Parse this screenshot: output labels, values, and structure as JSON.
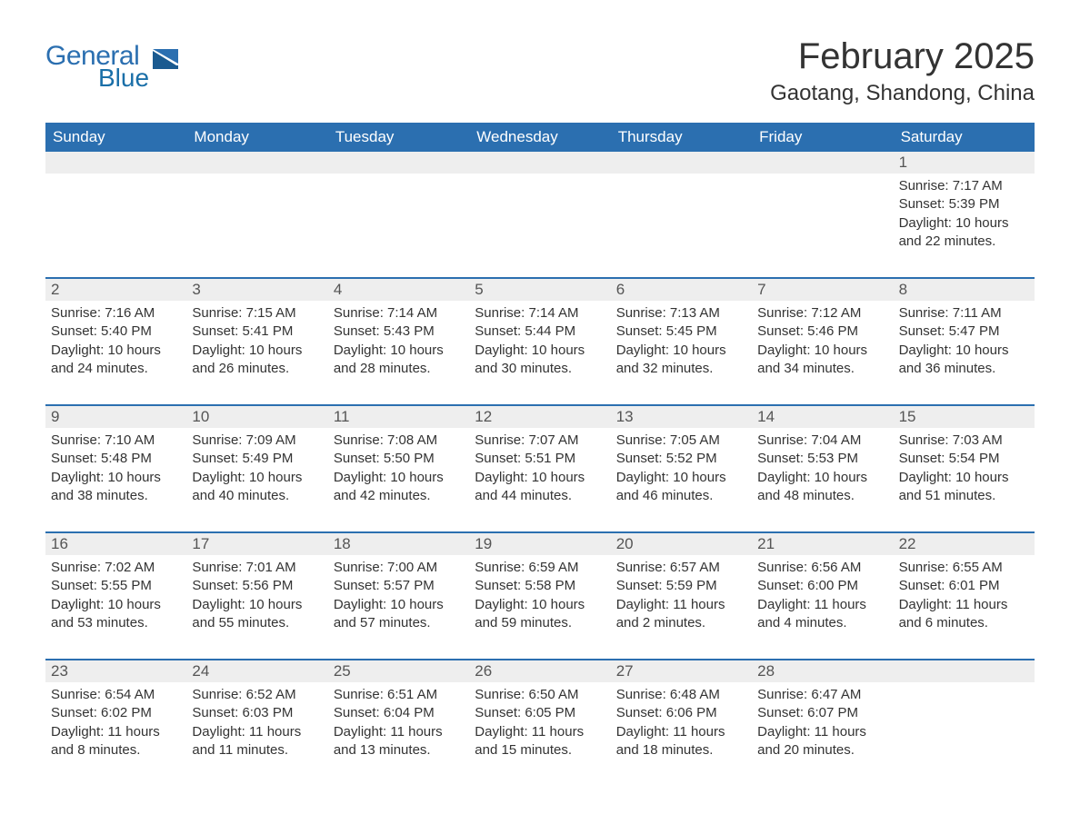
{
  "logo": {
    "general": "General",
    "blue": "Blue"
  },
  "title": "February 2025",
  "location": "Gaotang, Shandong, China",
  "colors": {
    "header_bg": "#2b6fb0",
    "header_text": "#ffffff",
    "daynum_bg": "#eeeeee",
    "week_border": "#2b6fb0",
    "body_text": "#333333",
    "logo_color": "#2b6fb0",
    "page_bg": "#ffffff"
  },
  "typography": {
    "title_fontsize": 40,
    "location_fontsize": 24,
    "header_fontsize": 17,
    "daynum_fontsize": 17,
    "cell_fontsize": 15,
    "logo_fontsize": 30,
    "font_family": "Arial, Helvetica, sans-serif"
  },
  "layout": {
    "columns": 7,
    "rows_visible": 5
  },
  "headers": [
    "Sunday",
    "Monday",
    "Tuesday",
    "Wednesday",
    "Thursday",
    "Friday",
    "Saturday"
  ],
  "weeks": [
    [
      null,
      null,
      null,
      null,
      null,
      null,
      {
        "n": "1",
        "sunrise": "Sunrise: 7:17 AM",
        "sunset": "Sunset: 5:39 PM",
        "d1": "Daylight: 10 hours",
        "d2": "and 22 minutes."
      }
    ],
    [
      {
        "n": "2",
        "sunrise": "Sunrise: 7:16 AM",
        "sunset": "Sunset: 5:40 PM",
        "d1": "Daylight: 10 hours",
        "d2": "and 24 minutes."
      },
      {
        "n": "3",
        "sunrise": "Sunrise: 7:15 AM",
        "sunset": "Sunset: 5:41 PM",
        "d1": "Daylight: 10 hours",
        "d2": "and 26 minutes."
      },
      {
        "n": "4",
        "sunrise": "Sunrise: 7:14 AM",
        "sunset": "Sunset: 5:43 PM",
        "d1": "Daylight: 10 hours",
        "d2": "and 28 minutes."
      },
      {
        "n": "5",
        "sunrise": "Sunrise: 7:14 AM",
        "sunset": "Sunset: 5:44 PM",
        "d1": "Daylight: 10 hours",
        "d2": "and 30 minutes."
      },
      {
        "n": "6",
        "sunrise": "Sunrise: 7:13 AM",
        "sunset": "Sunset: 5:45 PM",
        "d1": "Daylight: 10 hours",
        "d2": "and 32 minutes."
      },
      {
        "n": "7",
        "sunrise": "Sunrise: 7:12 AM",
        "sunset": "Sunset: 5:46 PM",
        "d1": "Daylight: 10 hours",
        "d2": "and 34 minutes."
      },
      {
        "n": "8",
        "sunrise": "Sunrise: 7:11 AM",
        "sunset": "Sunset: 5:47 PM",
        "d1": "Daylight: 10 hours",
        "d2": "and 36 minutes."
      }
    ],
    [
      {
        "n": "9",
        "sunrise": "Sunrise: 7:10 AM",
        "sunset": "Sunset: 5:48 PM",
        "d1": "Daylight: 10 hours",
        "d2": "and 38 minutes."
      },
      {
        "n": "10",
        "sunrise": "Sunrise: 7:09 AM",
        "sunset": "Sunset: 5:49 PM",
        "d1": "Daylight: 10 hours",
        "d2": "and 40 minutes."
      },
      {
        "n": "11",
        "sunrise": "Sunrise: 7:08 AM",
        "sunset": "Sunset: 5:50 PM",
        "d1": "Daylight: 10 hours",
        "d2": "and 42 minutes."
      },
      {
        "n": "12",
        "sunrise": "Sunrise: 7:07 AM",
        "sunset": "Sunset: 5:51 PM",
        "d1": "Daylight: 10 hours",
        "d2": "and 44 minutes."
      },
      {
        "n": "13",
        "sunrise": "Sunrise: 7:05 AM",
        "sunset": "Sunset: 5:52 PM",
        "d1": "Daylight: 10 hours",
        "d2": "and 46 minutes."
      },
      {
        "n": "14",
        "sunrise": "Sunrise: 7:04 AM",
        "sunset": "Sunset: 5:53 PM",
        "d1": "Daylight: 10 hours",
        "d2": "and 48 minutes."
      },
      {
        "n": "15",
        "sunrise": "Sunrise: 7:03 AM",
        "sunset": "Sunset: 5:54 PM",
        "d1": "Daylight: 10 hours",
        "d2": "and 51 minutes."
      }
    ],
    [
      {
        "n": "16",
        "sunrise": "Sunrise: 7:02 AM",
        "sunset": "Sunset: 5:55 PM",
        "d1": "Daylight: 10 hours",
        "d2": "and 53 minutes."
      },
      {
        "n": "17",
        "sunrise": "Sunrise: 7:01 AM",
        "sunset": "Sunset: 5:56 PM",
        "d1": "Daylight: 10 hours",
        "d2": "and 55 minutes."
      },
      {
        "n": "18",
        "sunrise": "Sunrise: 7:00 AM",
        "sunset": "Sunset: 5:57 PM",
        "d1": "Daylight: 10 hours",
        "d2": "and 57 minutes."
      },
      {
        "n": "19",
        "sunrise": "Sunrise: 6:59 AM",
        "sunset": "Sunset: 5:58 PM",
        "d1": "Daylight: 10 hours",
        "d2": "and 59 minutes."
      },
      {
        "n": "20",
        "sunrise": "Sunrise: 6:57 AM",
        "sunset": "Sunset: 5:59 PM",
        "d1": "Daylight: 11 hours",
        "d2": "and 2 minutes."
      },
      {
        "n": "21",
        "sunrise": "Sunrise: 6:56 AM",
        "sunset": "Sunset: 6:00 PM",
        "d1": "Daylight: 11 hours",
        "d2": "and 4 minutes."
      },
      {
        "n": "22",
        "sunrise": "Sunrise: 6:55 AM",
        "sunset": "Sunset: 6:01 PM",
        "d1": "Daylight: 11 hours",
        "d2": "and 6 minutes."
      }
    ],
    [
      {
        "n": "23",
        "sunrise": "Sunrise: 6:54 AM",
        "sunset": "Sunset: 6:02 PM",
        "d1": "Daylight: 11 hours",
        "d2": "and 8 minutes."
      },
      {
        "n": "24",
        "sunrise": "Sunrise: 6:52 AM",
        "sunset": "Sunset: 6:03 PM",
        "d1": "Daylight: 11 hours",
        "d2": "and 11 minutes."
      },
      {
        "n": "25",
        "sunrise": "Sunrise: 6:51 AM",
        "sunset": "Sunset: 6:04 PM",
        "d1": "Daylight: 11 hours",
        "d2": "and 13 minutes."
      },
      {
        "n": "26",
        "sunrise": "Sunrise: 6:50 AM",
        "sunset": "Sunset: 6:05 PM",
        "d1": "Daylight: 11 hours",
        "d2": "and 15 minutes."
      },
      {
        "n": "27",
        "sunrise": "Sunrise: 6:48 AM",
        "sunset": "Sunset: 6:06 PM",
        "d1": "Daylight: 11 hours",
        "d2": "and 18 minutes."
      },
      {
        "n": "28",
        "sunrise": "Sunrise: 6:47 AM",
        "sunset": "Sunset: 6:07 PM",
        "d1": "Daylight: 11 hours",
        "d2": "and 20 minutes."
      },
      null
    ]
  ]
}
